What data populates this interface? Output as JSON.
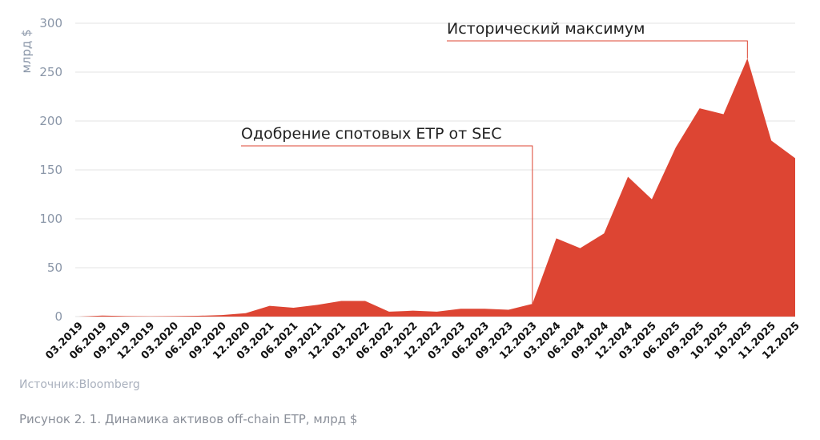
{
  "chart_data": {
    "type": "area",
    "title": "",
    "ylabel": "млрд $",
    "xlabel": "",
    "ylim": [
      0,
      300
    ],
    "yticks": [
      0,
      50,
      100,
      150,
      200,
      250,
      300
    ],
    "grid": true,
    "color": "#dd4533",
    "categories": [
      "03.2019",
      "06.2019",
      "09.2019",
      "12.2019",
      "03.2020",
      "06.2020",
      "09.2020",
      "12.2020",
      "03.2021",
      "06.2021",
      "09.2021",
      "12.2021",
      "03.2022",
      "06.2022",
      "09.2022",
      "12.2022",
      "03.2023",
      "06.2023",
      "09.2023",
      "12.2023",
      "03.2024",
      "06.2024",
      "09.2024",
      "12.2024",
      "03.2025",
      "06.2025",
      "09.2025",
      "10.2025",
      "10.2025",
      "11.2025",
      "12.2025"
    ],
    "values": [
      0,
      1,
      0.5,
      0.3,
      0.5,
      0.8,
      1.5,
      3.5,
      11,
      9,
      12,
      16,
      16,
      5,
      6,
      5,
      8,
      8,
      7,
      13,
      80,
      70,
      85,
      143,
      120,
      173,
      213,
      207,
      264,
      180,
      162
    ],
    "annotations": [
      {
        "text": "Одобрение спотовых ETP от SEC",
        "index": 19
      },
      {
        "text": "Исторический максимум",
        "index": 28
      }
    ]
  },
  "source": "Источник:Bloomberg",
  "caption": "Рисунок 2. 1. Динамика активов off-chain ETP, млрд $"
}
